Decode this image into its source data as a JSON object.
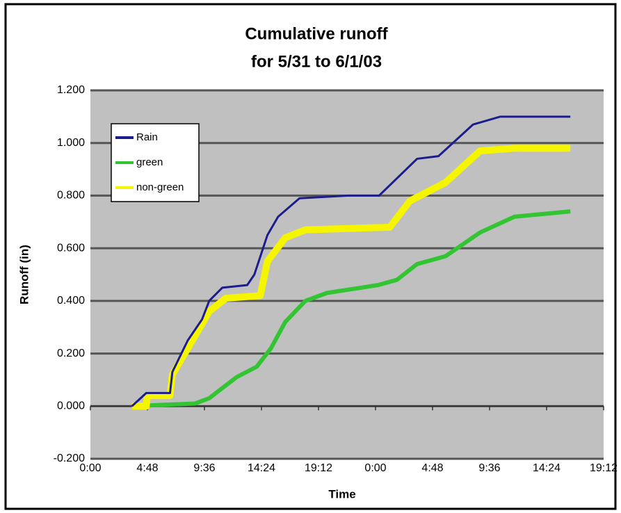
{
  "chart_data": {
    "type": "line",
    "title": "Cumulative runoff",
    "subtitle": "for 5/31 to 6/1/03",
    "x_label": "Time",
    "y_label": "Runoff (in)",
    "xlim": [
      0,
      43.2
    ],
    "xticks": [
      {
        "value": 0,
        "label": "0:00"
      },
      {
        "value": 4.8,
        "label": "4:48"
      },
      {
        "value": 9.6,
        "label": "9:36"
      },
      {
        "value": 14.4,
        "label": "14:24"
      },
      {
        "value": 19.2,
        "label": "19:12"
      },
      {
        "value": 24,
        "label": "0:00"
      },
      {
        "value": 28.8,
        "label": "4:48"
      },
      {
        "value": 33.6,
        "label": "9:36"
      },
      {
        "value": 38.4,
        "label": "14:24"
      },
      {
        "value": 43.2,
        "label": "19:12"
      }
    ],
    "ylim": [
      -0.2,
      1.2
    ],
    "yticks": [
      {
        "value": -0.2,
        "label": "-0.200"
      },
      {
        "value": 0,
        "label": "0.000"
      },
      {
        "value": 0.2,
        "label": "0.200"
      },
      {
        "value": 0.4,
        "label": "0.400"
      },
      {
        "value": 0.6,
        "label": "0.600"
      },
      {
        "value": 0.8,
        "label": "0.800"
      },
      {
        "value": 1,
        "label": "1.000"
      },
      {
        "value": 1.2,
        "label": "1.200"
      }
    ],
    "grid": true,
    "legend": "upper left",
    "series": [
      {
        "name": "Rain",
        "color": "#1c1c8c",
        "width": 3,
        "x": [
          3.5,
          4.7,
          6.7,
          6.9,
          8.2,
          9.4,
          10,
          11.1,
          13.2,
          13.8,
          14.9,
          15.8,
          17.6,
          21.7,
          24.3,
          27.5,
          29.3,
          32.2,
          34.5,
          40.4
        ],
        "values": [
          0,
          0.05,
          0.05,
          0.13,
          0.25,
          0.33,
          0.4,
          0.45,
          0.46,
          0.5,
          0.65,
          0.72,
          0.79,
          0.8,
          0.8,
          0.94,
          0.95,
          1.07,
          1.1,
          1.1
        ]
      },
      {
        "name": "green",
        "color": "#33c433",
        "width": 6,
        "x": [
          3.5,
          8.8,
          10,
          12.3,
          14,
          15.2,
          16.4,
          18.1,
          19.9,
          24.2,
          25.8,
          27.5,
          29.9,
          32.8,
          35.7,
          40.4
        ],
        "values": [
          0,
          0.01,
          0.03,
          0.11,
          0.15,
          0.22,
          0.32,
          0.4,
          0.43,
          0.46,
          0.48,
          0.54,
          0.57,
          0.66,
          0.72,
          0.74
        ]
      },
      {
        "name": "non-green",
        "color": "#f5f500",
        "width": 10,
        "x": [
          3.5,
          4.7,
          4.8,
          6.7,
          6.9,
          8.2,
          10,
          11.4,
          14.3,
          14.9,
          16.4,
          18.1,
          25.2,
          26.9,
          29.9,
          32.8,
          35.7,
          40.4
        ],
        "values": [
          0,
          0,
          0.04,
          0.04,
          0.12,
          0.22,
          0.36,
          0.41,
          0.42,
          0.55,
          0.64,
          0.67,
          0.68,
          0.78,
          0.85,
          0.97,
          0.98,
          0.98
        ]
      }
    ]
  }
}
